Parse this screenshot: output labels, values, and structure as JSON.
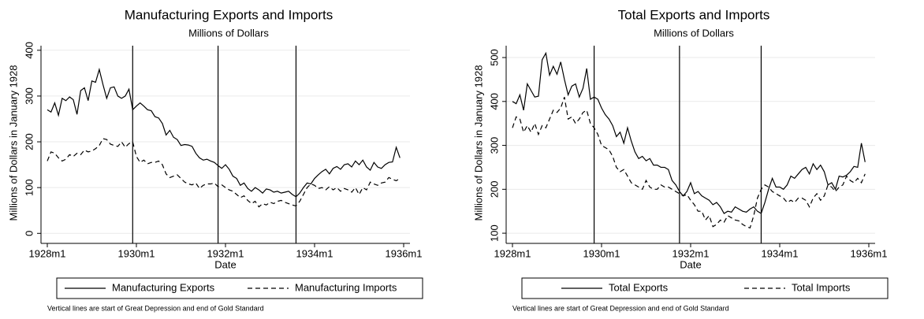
{
  "chart_data": [
    {
      "type": "line",
      "title": "Manufacturing Exports and Imports",
      "subtitle": "Millions of Dollars",
      "x_label": "Date",
      "y_label": "Millions of Dollars in January 1928",
      "x": [
        "1928m1",
        "1928m2",
        "1928m3",
        "1928m4",
        "1928m5",
        "1928m6",
        "1928m7",
        "1928m8",
        "1928m9",
        "1928m10",
        "1928m11",
        "1928m12",
        "1929m1",
        "1929m2",
        "1929m3",
        "1929m4",
        "1929m5",
        "1929m6",
        "1929m7",
        "1929m8",
        "1929m9",
        "1929m10",
        "1929m11",
        "1929m12",
        "1930m1",
        "1930m2",
        "1930m3",
        "1930m4",
        "1930m5",
        "1930m6",
        "1930m7",
        "1930m8",
        "1930m9",
        "1930m10",
        "1930m11",
        "1930m12",
        "1931m1",
        "1931m2",
        "1931m3",
        "1931m4",
        "1931m5",
        "1931m6",
        "1931m7",
        "1931m8",
        "1931m9",
        "1931m10",
        "1931m11",
        "1931m12",
        "1932m1",
        "1932m2",
        "1932m3",
        "1932m4",
        "1932m5",
        "1932m6",
        "1932m7",
        "1932m8",
        "1932m9",
        "1932m10",
        "1932m11",
        "1932m12",
        "1933m1",
        "1933m2",
        "1933m3",
        "1933m4",
        "1933m5",
        "1933m6",
        "1933m7",
        "1933m8",
        "1933m9",
        "1933m10",
        "1933m11",
        "1933m12",
        "1934m1",
        "1934m2",
        "1934m3",
        "1934m4",
        "1934m5",
        "1934m6",
        "1934m7",
        "1934m8",
        "1934m9",
        "1934m10",
        "1934m11",
        "1934m12",
        "1935m1",
        "1935m2",
        "1935m3",
        "1935m4",
        "1935m5",
        "1935m6",
        "1935m7",
        "1935m8",
        "1935m9",
        "1935m10",
        "1935m11",
        "1935m12"
      ],
      "series": [
        {
          "name": "Manufacturing Exports",
          "color": "#000000",
          "line_style": "solid",
          "values": [
            270,
            265,
            285,
            258,
            295,
            290,
            298,
            292,
            260,
            312,
            318,
            290,
            333,
            330,
            358,
            325,
            295,
            318,
            320,
            300,
            295,
            300,
            315,
            270,
            278,
            285,
            278,
            270,
            268,
            255,
            252,
            240,
            215,
            225,
            210,
            205,
            192,
            194,
            193,
            190,
            175,
            165,
            160,
            162,
            158,
            155,
            148,
            142,
            150,
            140,
            125,
            120,
            105,
            110,
            98,
            92,
            100,
            95,
            88,
            97,
            95,
            90,
            92,
            88,
            90,
            92,
            85,
            80,
            88,
            100,
            110,
            108,
            120,
            128,
            135,
            140,
            130,
            142,
            146,
            140,
            150,
            152,
            145,
            158,
            150,
            160,
            145,
            138,
            155,
            145,
            142,
            150,
            155,
            156,
            188,
            165
          ]
        },
        {
          "name": "Manufacturing Imports",
          "color": "#000000",
          "line_style": "dashed",
          "values": [
            158,
            178,
            175,
            165,
            158,
            162,
            172,
            168,
            175,
            172,
            182,
            178,
            180,
            185,
            192,
            207,
            205,
            195,
            192,
            190,
            200,
            188,
            196,
            200,
            168,
            155,
            160,
            152,
            155,
            155,
            158,
            150,
            130,
            122,
            125,
            128,
            120,
            112,
            108,
            106,
            110,
            98,
            105,
            108,
            108,
            110,
            102,
            106,
            100,
            95,
            92,
            85,
            78,
            82,
            72,
            65,
            70,
            58,
            65,
            62,
            68,
            65,
            70,
            72,
            68,
            65,
            62,
            60,
            70,
            85,
            100,
            108,
            105,
            98,
            100,
            95,
            102,
            95,
            100,
            92,
            98,
            95,
            90,
            100,
            85,
            100,
            95,
            112,
            108,
            105,
            110,
            112,
            122,
            118,
            115,
            120
          ]
        }
      ],
      "xlim": [
        "1928m1",
        "1936m1"
      ],
      "xticks": [
        "1928m1",
        "1930m1",
        "1932m1",
        "1934m1",
        "1936m1"
      ],
      "ylim": [
        -15,
        410
      ],
      "yticks": [
        0,
        100,
        200,
        300,
        400
      ],
      "grid": true,
      "vlines": [
        "1929m12",
        "1931m11",
        "1933m8"
      ],
      "legend": "bottom",
      "note": "Vertical lines are start of Great Depression and end of Gold Standard"
    },
    {
      "type": "line",
      "title": "Total Exports and Imports",
      "subtitle": "Millions of Dollars",
      "x_label": "Date",
      "y_label": "Millions of Dollars in January 1928",
      "x": [
        "1928m1",
        "1928m2",
        "1928m3",
        "1928m4",
        "1928m5",
        "1928m6",
        "1928m7",
        "1928m8",
        "1928m9",
        "1928m10",
        "1928m11",
        "1928m12",
        "1929m1",
        "1929m2",
        "1929m3",
        "1929m4",
        "1929m5",
        "1929m6",
        "1929m7",
        "1929m8",
        "1929m9",
        "1929m10",
        "1929m11",
        "1929m12",
        "1930m1",
        "1930m2",
        "1930m3",
        "1930m4",
        "1930m5",
        "1930m6",
        "1930m7",
        "1930m8",
        "1930m9",
        "1930m10",
        "1930m11",
        "1930m12",
        "1931m1",
        "1931m2",
        "1931m3",
        "1931m4",
        "1931m5",
        "1931m6",
        "1931m7",
        "1931m8",
        "1931m9",
        "1931m10",
        "1931m11",
        "1931m12",
        "1932m1",
        "1932m2",
        "1932m3",
        "1932m4",
        "1932m5",
        "1932m6",
        "1932m7",
        "1932m8",
        "1932m9",
        "1932m10",
        "1932m11",
        "1932m12",
        "1933m1",
        "1933m2",
        "1933m3",
        "1933m4",
        "1933m5",
        "1933m6",
        "1933m7",
        "1933m8",
        "1933m9",
        "1933m10",
        "1933m11",
        "1933m12",
        "1934m1",
        "1934m2",
        "1934m3",
        "1934m4",
        "1934m5",
        "1934m6",
        "1934m7",
        "1934m8",
        "1934m9",
        "1934m10",
        "1934m11",
        "1934m12",
        "1935m1",
        "1935m2",
        "1935m3",
        "1935m4",
        "1935m5",
        "1935m6",
        "1935m7",
        "1935m8",
        "1935m9",
        "1935m10",
        "1935m11",
        "1935m12"
      ],
      "series": [
        {
          "name": "Total Exports",
          "color": "#000000",
          "line_style": "solid",
          "values": [
            400,
            395,
            415,
            380,
            440,
            425,
            410,
            412,
            495,
            510,
            460,
            480,
            462,
            490,
            450,
            415,
            435,
            440,
            410,
            430,
            475,
            405,
            410,
            405,
            385,
            370,
            360,
            345,
            320,
            330,
            305,
            340,
            310,
            285,
            270,
            275,
            265,
            270,
            255,
            255,
            250,
            250,
            245,
            220,
            210,
            195,
            185,
            195,
            215,
            190,
            195,
            185,
            180,
            175,
            165,
            170,
            160,
            145,
            150,
            148,
            160,
            155,
            150,
            148,
            155,
            160,
            150,
            145,
            170,
            200,
            225,
            205,
            205,
            200,
            210,
            230,
            225,
            235,
            245,
            250,
            235,
            258,
            245,
            255,
            240,
            210,
            215,
            200,
            230,
            228,
            232,
            240,
            252,
            250,
            305,
            262
          ]
        },
        {
          "name": "Total Imports",
          "color": "#000000",
          "line_style": "dashed",
          "values": [
            340,
            365,
            360,
            330,
            345,
            330,
            350,
            325,
            345,
            340,
            360,
            380,
            375,
            385,
            410,
            360,
            365,
            350,
            360,
            375,
            380,
            350,
            340,
            325,
            300,
            295,
            290,
            275,
            250,
            240,
            245,
            230,
            215,
            210,
            205,
            200,
            220,
            205,
            200,
            200,
            210,
            205,
            205,
            200,
            195,
            190,
            185,
            188,
            175,
            165,
            150,
            150,
            130,
            140,
            115,
            120,
            130,
            125,
            140,
            135,
            130,
            128,
            120,
            115,
            112,
            140,
            180,
            200,
            210,
            205,
            195,
            190,
            185,
            180,
            170,
            175,
            170,
            180,
            180,
            175,
            160,
            180,
            190,
            175,
            185,
            210,
            205,
            195,
            205,
            210,
            230,
            220,
            215,
            225,
            215,
            235
          ]
        }
      ],
      "xlim": [
        "1928m1",
        "1936m1"
      ],
      "xticks": [
        "1928m1",
        "1930m1",
        "1932m1",
        "1934m1",
        "1936m1"
      ],
      "ylim": [
        84,
        527
      ],
      "yticks": [
        100,
        200,
        300,
        400,
        500
      ],
      "grid": true,
      "vlines": [
        "1929m11",
        "1931m10",
        "1933m8"
      ],
      "legend": "bottom",
      "note": "Vertical lines are start of Great Depression and end of Gold Standard"
    }
  ]
}
